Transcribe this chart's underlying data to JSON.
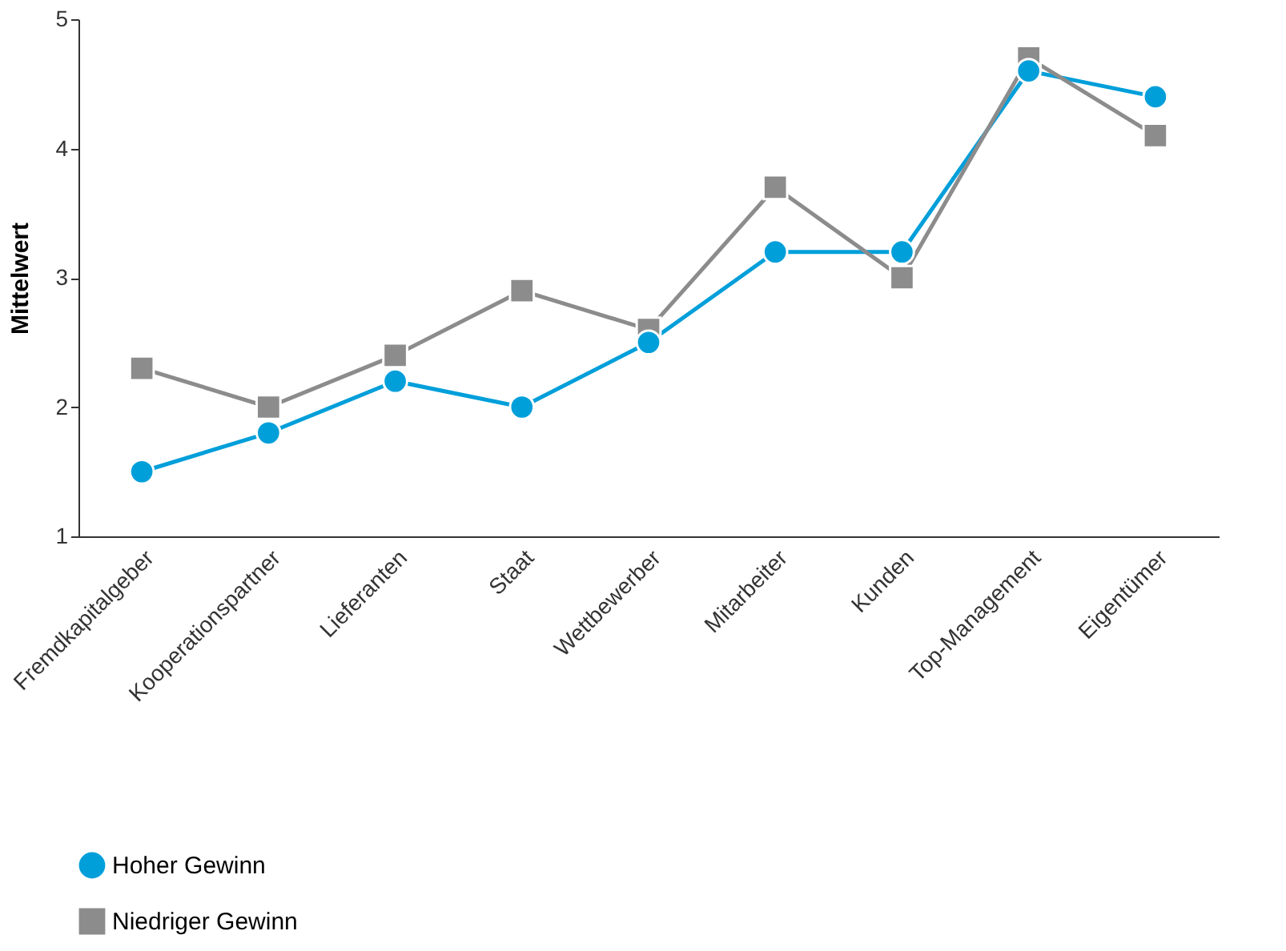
{
  "chart_data": {
    "type": "line",
    "ylabel": "Mittelwert",
    "categories": [
      "Fremdkapitalgeber",
      "Kooperationspartner",
      "Lieferanten",
      "Staat",
      "Wettbewerber",
      "Mitarbeiter",
      "Kunden",
      "Top-Management",
      "Eigentümer"
    ],
    "series": [
      {
        "name": "Hoher Gewinn",
        "color": "#009fda",
        "marker": "circle",
        "values": [
          1.5,
          1.8,
          2.2,
          2.0,
          2.5,
          3.2,
          3.2,
          4.6,
          4.4
        ]
      },
      {
        "name": "Niedriger Gewinn",
        "color": "#8c8c8c",
        "marker": "square",
        "values": [
          2.3,
          2.0,
          2.4,
          2.9,
          2.6,
          3.7,
          3.0,
          4.7,
          4.1
        ]
      }
    ],
    "ylim": [
      1,
      5
    ],
    "yticks": [
      1,
      2,
      3,
      4,
      5
    ],
    "grid": false,
    "legend": "bottom left",
    "line_style": "solid"
  }
}
